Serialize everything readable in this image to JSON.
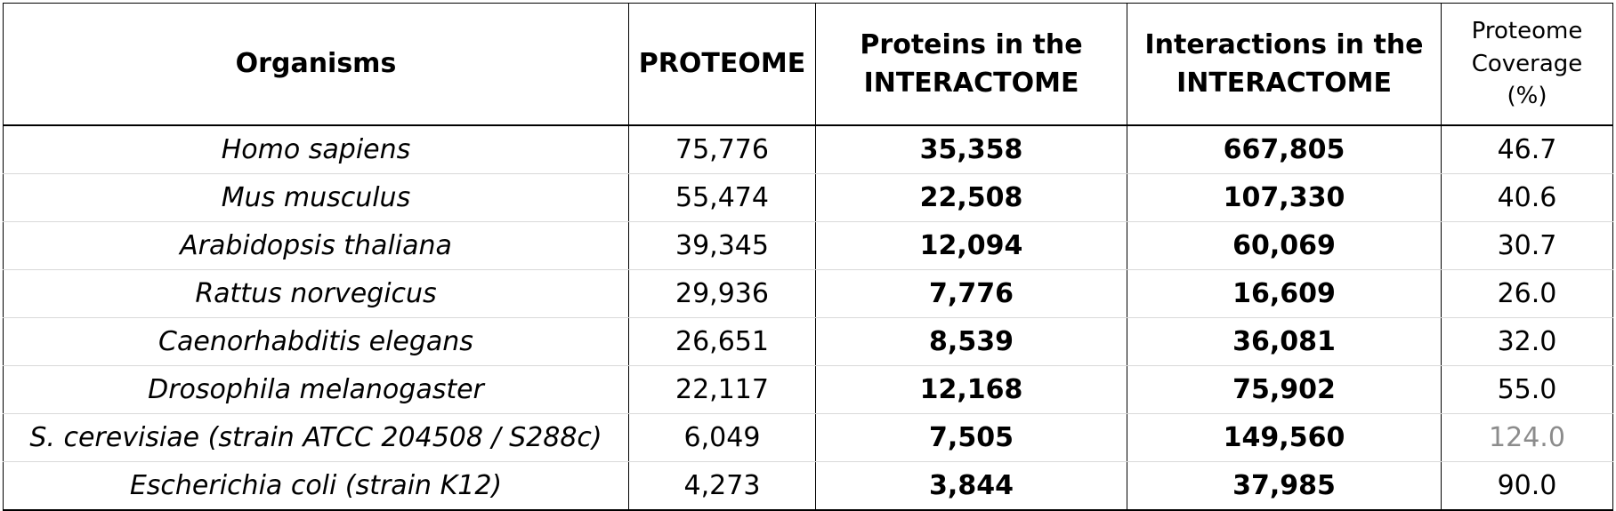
{
  "headers": {
    "organisms": "Organisms",
    "proteome": "PROTEOME",
    "proteins_line1": "Proteins in the",
    "proteins_line2": "INTERACTOME",
    "interactions_line1": "Interactions in the",
    "interactions_line2": "INTERACTOME",
    "coverage_line1": "Proteome",
    "coverage_line2": "Coverage",
    "coverage_line3": "(%)"
  },
  "rows": [
    {
      "organism": "Homo sapiens",
      "proteome": "75,776",
      "proteins": "35,358",
      "interactions": "667,805",
      "coverage": "46.7"
    },
    {
      "organism": "Mus musculus",
      "proteome": "55,474",
      "proteins": "22,508",
      "interactions": "107,330",
      "coverage": "40.6"
    },
    {
      "organism": "Arabidopsis thaliana",
      "proteome": "39,345",
      "proteins": "12,094",
      "interactions": "60,069",
      "coverage": "30.7"
    },
    {
      "organism": "Rattus norvegicus",
      "proteome": "29,936",
      "proteins": "7,776",
      "interactions": "16,609",
      "coverage": "26.0"
    },
    {
      "organism": "Caenorhabditis elegans",
      "proteome": "26,651",
      "proteins": "8,539",
      "interactions": "36,081",
      "coverage": "32.0"
    },
    {
      "organism": "Drosophila melanogaster",
      "proteome": "22,117",
      "proteins": "12,168",
      "interactions": "75,902",
      "coverage": "55.0"
    },
    {
      "organism": "S. cerevisiae (strain ATCC 204508 / S288c)",
      "proteome": "6,049",
      "proteins": "7,505",
      "interactions": "149,560",
      "coverage": "124.0"
    },
    {
      "organism": "Escherichia coli (strain K12)",
      "proteome": "4,273",
      "proteins": "3,844",
      "interactions": "37,985",
      "coverage": "90.0"
    }
  ],
  "colors": {
    "text": "#000000",
    "muted_value": "#8c8c8c",
    "row_divider": "#d9d9d9"
  }
}
